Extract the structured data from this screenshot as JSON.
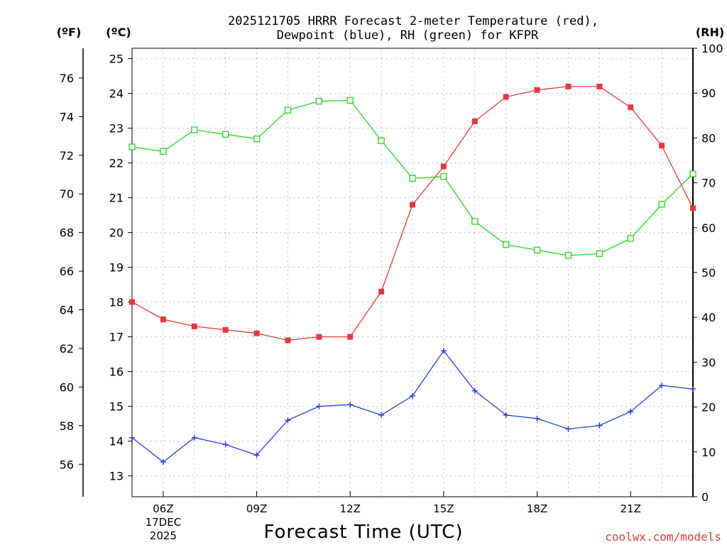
{
  "chart_data": {
    "type": "line",
    "title": "2025121705 HRRR Forecast 2-meter Temperature (red),",
    "subtitle": "Dewpoint (blue), RH (green) for KFPR",
    "xlabel": "Forecast Time (UTC)",
    "credit": "coolwx.com/models",
    "units": {
      "fahrenheit": "(ºF)",
      "celsius": "(ºC)",
      "rh": "(RH)"
    },
    "x_hours": [
      5,
      6,
      7,
      8,
      9,
      10,
      11,
      12,
      13,
      14,
      15,
      16,
      17,
      18,
      19,
      20,
      21,
      22,
      23
    ],
    "x_range": [
      5,
      23
    ],
    "x_ticks": [
      {
        "hour": 6,
        "label": "06Z",
        "date1": "17DEC",
        "date2": "2025"
      },
      {
        "hour": 9,
        "label": "09Z"
      },
      {
        "hour": 12,
        "label": "12Z"
      },
      {
        "hour": 15,
        "label": "15Z"
      },
      {
        "hour": 18,
        "label": "18Z"
      },
      {
        "hour": 21,
        "label": "21Z"
      }
    ],
    "celsius_axis": {
      "range": [
        12.4,
        25.3
      ],
      "ticks": [
        13,
        14,
        15,
        16,
        17,
        18,
        19,
        20,
        21,
        22,
        23,
        24,
        25
      ]
    },
    "fahrenheit_axis": {
      "ticks": [
        56,
        58,
        60,
        62,
        64,
        66,
        68,
        70,
        72,
        74,
        76
      ]
    },
    "rh_axis": {
      "range": [
        0,
        100
      ],
      "ticks": [
        0,
        10,
        20,
        30,
        40,
        50,
        60,
        70,
        80,
        90,
        100
      ]
    },
    "series": [
      {
        "name": "Temperature",
        "color": "#e8383d",
        "marker": "filled-square",
        "axis": "celsius",
        "values": [
          18.0,
          17.5,
          17.3,
          17.2,
          17.1,
          16.9,
          17.0,
          17.0,
          18.3,
          20.8,
          21.9,
          23.2,
          23.9,
          24.1,
          24.2,
          24.2,
          23.6,
          22.5,
          20.7
        ]
      },
      {
        "name": "Dewpoint",
        "color": "#2b3fe0",
        "marker": "plus",
        "axis": "celsius",
        "values": [
          14.1,
          13.4,
          14.1,
          13.9,
          13.6,
          14.6,
          15.0,
          15.05,
          14.75,
          15.3,
          16.6,
          15.45,
          14.75,
          14.65,
          14.35,
          14.45,
          14.85,
          15.6,
          15.5
        ]
      },
      {
        "name": "RH",
        "color": "#22d822",
        "marker": "open-square",
        "axis": "rh",
        "values": [
          78.0,
          77.0,
          81.8,
          80.8,
          79.8,
          86.2,
          88.2,
          88.4,
          79.4,
          71.0,
          71.4,
          61.4,
          56.2,
          55.0,
          53.8,
          54.2,
          57.6,
          65.2,
          72.0
        ]
      }
    ]
  }
}
